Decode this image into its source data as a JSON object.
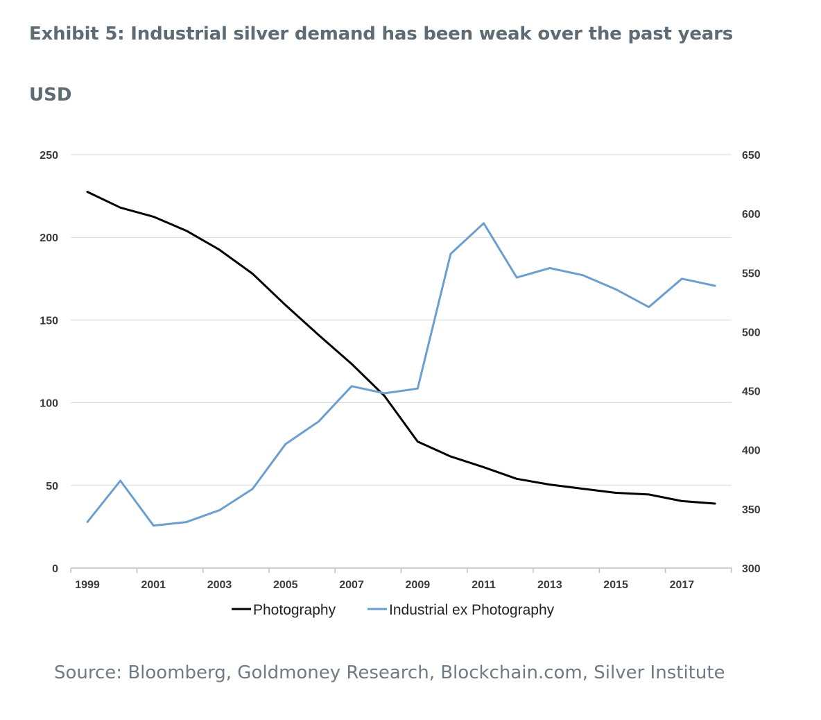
{
  "header": {
    "title": "Exhibit 5: Industrial silver demand has been weak over the past years",
    "unit": "USD"
  },
  "footer": {
    "source": "Source: Bloomberg, Goldmoney Research, Blockchain.com, Silver Institute"
  },
  "colors": {
    "photography": "#000000",
    "industrial": "#6a9fd0",
    "grid": "#d9d9d9",
    "axis": "#bfbfbf"
  },
  "chart_data": {
    "type": "line",
    "title": "",
    "xlabel": "",
    "ylabel": "",
    "x": [
      1999,
      2000,
      2001,
      2002,
      2003,
      2004,
      2005,
      2006,
      2007,
      2008,
      2009,
      2010,
      2011,
      2012,
      2013,
      2014,
      2015,
      2016,
      2017,
      2018
    ],
    "x_tick_labels": [
      "1999",
      "2001",
      "2003",
      "2005",
      "2007",
      "2009",
      "2011",
      "2013",
      "2015",
      "2017"
    ],
    "y_left": {
      "min": 0,
      "max": 250,
      "ticks": [
        "0",
        "50",
        "100",
        "150",
        "200",
        "250"
      ]
    },
    "y_right": {
      "min": 300,
      "max": 650,
      "ticks": [
        "300",
        "350",
        "400",
        "450",
        "500",
        "550",
        "600",
        "650"
      ]
    },
    "grid": "horizontal",
    "legend": {
      "placement": "bottom"
    },
    "series": [
      {
        "name": "Photography",
        "axis": "left",
        "values": [
          227.5,
          218,
          212.5,
          204,
          192.5,
          178,
          159,
          141,
          123.5,
          104,
          76.5,
          67.5,
          61,
          54,
          50.5,
          48,
          45.5,
          44.5,
          40.5,
          39
        ]
      },
      {
        "name": "Industrial ex Photography",
        "axis": "right",
        "values": [
          339,
          374,
          336,
          339,
          349,
          367,
          405,
          424,
          454,
          448,
          452,
          566,
          592,
          546,
          554,
          548,
          536,
          521,
          545,
          539
        ]
      }
    ]
  }
}
